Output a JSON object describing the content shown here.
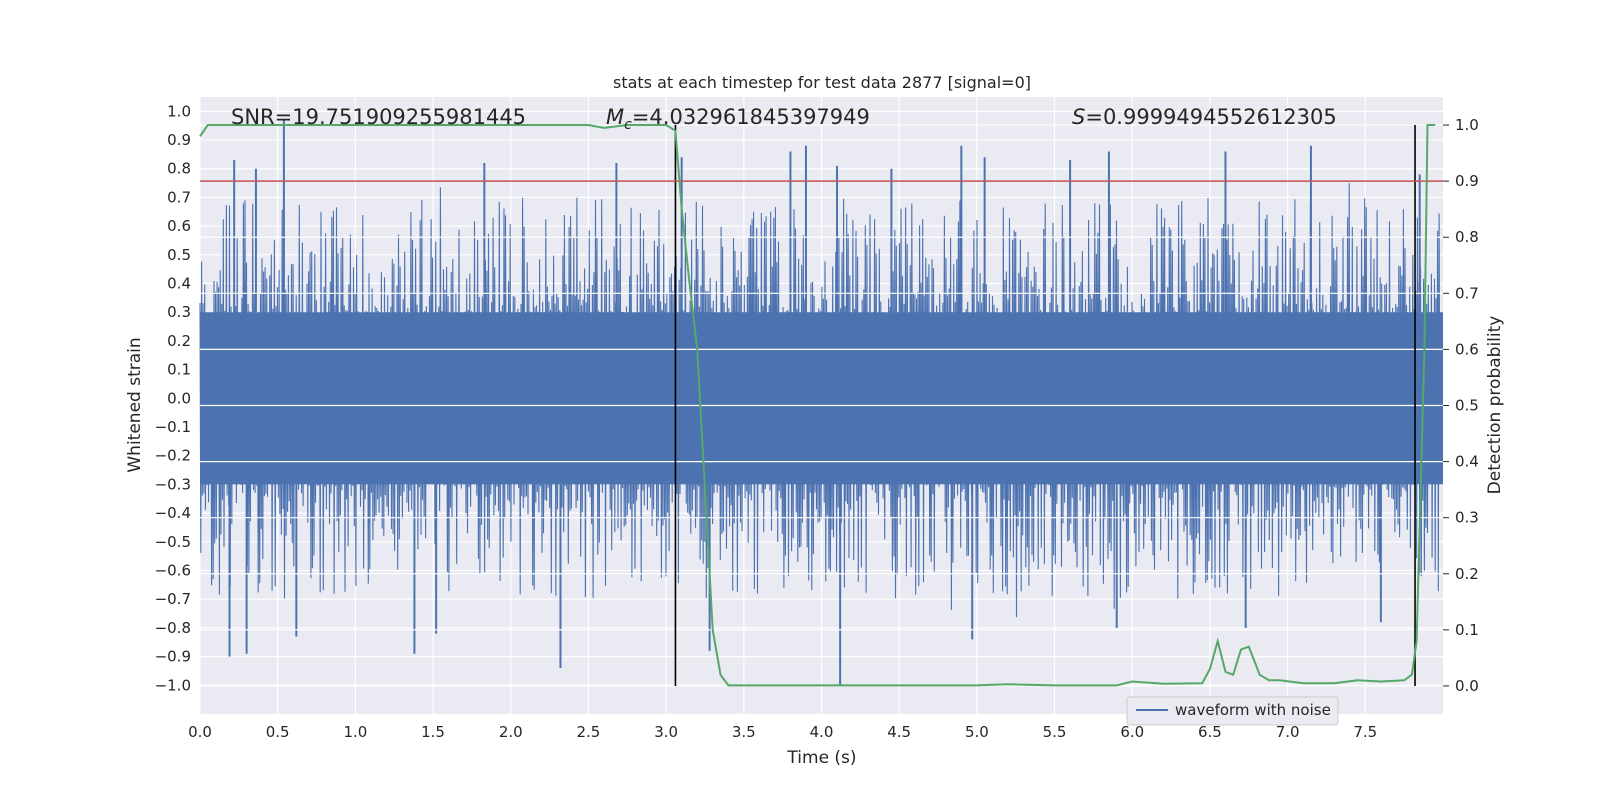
{
  "chart_data": {
    "type": "line",
    "title": "stats at each timestep for test data 2877 [signal=0]",
    "xlabel": "Time (s)",
    "ylabel_left": "Whitened strain",
    "ylabel_right": "Detection probability",
    "xlim": [
      0.0,
      8.0
    ],
    "ylim_left": [
      -1.1,
      1.05
    ],
    "ylim_right": [
      -0.05,
      1.05
    ],
    "x_ticks": [
      "0.0",
      "0.5",
      "1.0",
      "1.5",
      "2.0",
      "2.5",
      "3.0",
      "3.5",
      "4.0",
      "4.5",
      "5.0",
      "5.5",
      "6.0",
      "6.5",
      "7.0",
      "7.5"
    ],
    "y_ticks_left": [
      "1.0",
      "0.9",
      "0.8",
      "0.7",
      "0.6",
      "0.5",
      "0.4",
      "0.3",
      "0.2",
      "0.1",
      "0.0",
      "-0.1",
      "-0.2",
      "-0.3",
      "-0.4",
      "-0.5",
      "-0.6",
      "-0.7",
      "-0.8",
      "-0.9",
      "-1.0"
    ],
    "y_ticks_right": [
      "1.0",
      "0.9",
      "0.8",
      "0.7",
      "0.6",
      "0.5",
      "0.4",
      "0.3",
      "0.2",
      "0.1",
      "0.0"
    ],
    "annotations": {
      "snr": "SNR=19.751909255981445",
      "mc_symbol": "M",
      "mc_sub": "c",
      "mc_value": "=4.032961845397949",
      "s_symbol": "S",
      "s_value": "=0.9999494552612305"
    },
    "threshold": {
      "value": 0.9,
      "axis": "right",
      "color": "#c44e52"
    },
    "vertical_markers": [
      3.06,
      7.82
    ],
    "series": [
      {
        "name": "waveform with noise",
        "color": "#4c72b0",
        "axis": "left",
        "band_core": [
          -0.3,
          0.3
        ],
        "peak_times": [
          0.22,
          0.36,
          0.54,
          1.83,
          2.68,
          3.1,
          3.8,
          3.9,
          4.1,
          4.45,
          4.9,
          5.05,
          5.6,
          5.85,
          6.6,
          7.15,
          7.85
        ],
        "peak_values": [
          0.83,
          0.8,
          0.97,
          0.82,
          0.82,
          0.84,
          0.86,
          0.88,
          0.81,
          0.8,
          0.88,
          0.84,
          0.83,
          0.86,
          0.86,
          0.88,
          0.78
        ],
        "trough_times": [
          0.19,
          0.3,
          0.62,
          1.38,
          1.52,
          2.32,
          3.28,
          4.12,
          4.97,
          5.9,
          6.73,
          7.6
        ],
        "trough_values": [
          -0.9,
          -0.89,
          -0.83,
          -0.89,
          -0.82,
          -0.94,
          -0.88,
          -1.0,
          -0.84,
          -0.8,
          -0.8,
          -0.78
        ]
      },
      {
        "name": "detection probability",
        "color": "#55a868",
        "axis": "right",
        "x": [
          0.0,
          0.05,
          0.3,
          1.0,
          2.0,
          2.5,
          2.6,
          2.75,
          2.9,
          3.0,
          3.06,
          3.1,
          3.15,
          3.2,
          3.25,
          3.3,
          3.35,
          3.4,
          3.6,
          4.0,
          4.5,
          5.0,
          5.2,
          5.5,
          5.9,
          6.0,
          6.2,
          6.45,
          6.5,
          6.55,
          6.6,
          6.65,
          6.7,
          6.75,
          6.82,
          6.88,
          6.95,
          7.1,
          7.3,
          7.45,
          7.6,
          7.75,
          7.8,
          7.83,
          7.88,
          7.9,
          7.95
        ],
        "y": [
          0.98,
          1.0,
          1.0,
          1.0,
          1.0,
          1.0,
          0.995,
          1.0,
          1.0,
          1.0,
          0.99,
          0.85,
          0.72,
          0.6,
          0.35,
          0.1,
          0.02,
          0.001,
          0.001,
          0.001,
          0.001,
          0.001,
          0.003,
          0.001,
          0.001,
          0.008,
          0.004,
          0.005,
          0.03,
          0.08,
          0.025,
          0.02,
          0.065,
          0.07,
          0.02,
          0.01,
          0.01,
          0.005,
          0.005,
          0.01,
          0.008,
          0.01,
          0.02,
          0.08,
          0.6,
          1.0,
          1.0
        ]
      }
    ],
    "legend": {
      "label": "waveform with noise",
      "position": "lower-right"
    }
  }
}
